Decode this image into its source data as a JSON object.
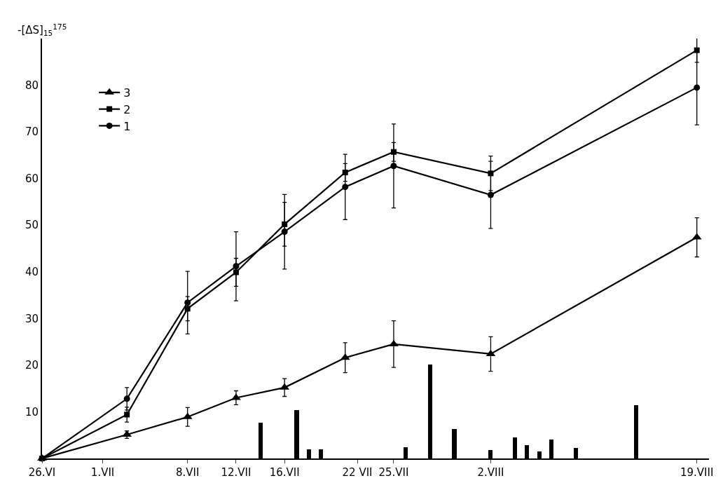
{
  "chart_data": {
    "type": "line",
    "ylabel": "-[ΔS]$_{15}$$^{175}$",
    "xlim": [
      "--06-26",
      "--08-20"
    ],
    "ylim": [
      0,
      90
    ],
    "xticks": [
      {
        "value": "--06-26",
        "label": "26.VI"
      },
      {
        "value": "--07-01",
        "label": "1.VII"
      },
      {
        "value": "--07-08",
        "label": "8.VII"
      },
      {
        "value": "--07-12",
        "label": "12.VII"
      },
      {
        "value": "--07-16",
        "label": "16.VII"
      },
      {
        "value": "--07-22",
        "label": "22 VII"
      },
      {
        "value": "--07-25",
        "label": "25.VII"
      },
      {
        "value": "--08-02",
        "label": "2.VIII"
      },
      {
        "value": "--08-19",
        "label": "19.VIII"
      }
    ],
    "yticks": [
      10,
      20,
      30,
      40,
      50,
      60,
      70,
      80
    ],
    "legend": "top left",
    "line_style": "solid",
    "series": [
      {
        "name": "1",
        "color": "#000000",
        "marker": "circle",
        "x": [
          "--06-26",
          "--07-03",
          "--07-08",
          "--07-12",
          "--07-16",
          "--07-21",
          "--07-25",
          "--08-02",
          "--08-19"
        ],
        "values": [
          0,
          12.8,
          33.4,
          41.2,
          48.6,
          58.2,
          62.7,
          56.5,
          79.5
        ],
        "errors": [
          null,
          2.4,
          6.7,
          7.4,
          8,
          7,
          9,
          7.2,
          8
        ]
      },
      {
        "name": "2",
        "color": "#000000",
        "marker": "square",
        "x": [
          "--06-26",
          "--07-03",
          "--07-08",
          "--07-12",
          "--07-16",
          "--07-21",
          "--07-25",
          "--08-02",
          "--08-19"
        ],
        "values": [
          0,
          9.4,
          32.1,
          39.9,
          50.2,
          61.3,
          65.7,
          61.1,
          87.5
        ],
        "errors": [
          null,
          1.6,
          2.6,
          3,
          4.7,
          1.9,
          2,
          3.7,
          2.6
        ]
      },
      {
        "name": "3",
        "color": "#000000",
        "marker": "triangle",
        "x": [
          "--06-26",
          "--07-03",
          "--07-08",
          "--07-12",
          "--07-16",
          "--07-21",
          "--07-25",
          "--08-02",
          "--08-19"
        ],
        "values": [
          0,
          5.1,
          8.9,
          13.0,
          15.2,
          21.6,
          24.5,
          22.4,
          47.4
        ],
        "errors": [
          null,
          0.8,
          2,
          1.5,
          1.9,
          3.2,
          5,
          3.7,
          4.2
        ]
      },
      {
        "type": "bar",
        "color": "#000000",
        "x": [
          "--07-14",
          "--07-17",
          "--07-18",
          "--07-19",
          "--07-26",
          "--07-28",
          "--07-30",
          "--08-02",
          "--08-04",
          "--08-05",
          "--08-06",
          "--08-07",
          "--08-09",
          "--08-14"
        ],
        "values": [
          7.6,
          10.3,
          2.0,
          2.0,
          2.4,
          20.2,
          6.3,
          1.8,
          4.5,
          2.9,
          1.5,
          4.0,
          2.2,
          11.4
        ]
      }
    ]
  }
}
